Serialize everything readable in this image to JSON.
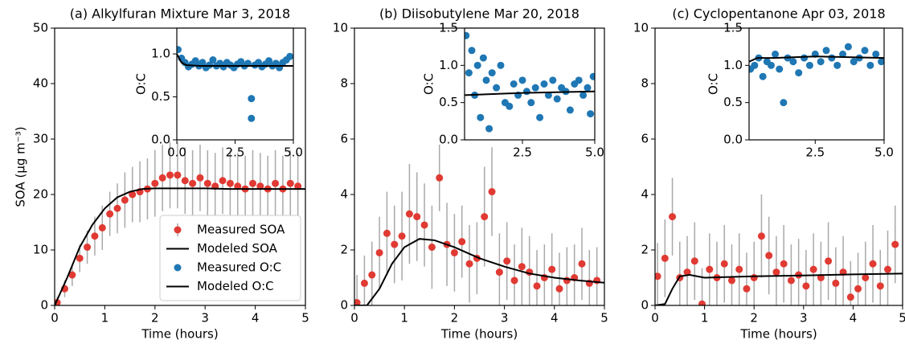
{
  "chart_data": [
    {
      "type": "scatter",
      "title": "(a) Alkylfuran Mixture Mar 3, 2018",
      "xlabel": "Time (hours)",
      "ylabel": "SOA (μg m⁻³)",
      "xlim": [
        0,
        5
      ],
      "xticks": [
        0,
        1,
        2,
        3,
        4,
        5
      ],
      "ylim": [
        0,
        50
      ],
      "yticks": [
        0,
        10,
        20,
        30,
        40,
        50
      ],
      "legend": "lower right",
      "series": [
        {
          "name": "Measured SOA",
          "mode": "markers",
          "color": "#e03a33",
          "error_color": "#a9a9a9",
          "x": [
            0.05,
            0.2,
            0.35,
            0.5,
            0.65,
            0.8,
            0.95,
            1.1,
            1.25,
            1.4,
            1.55,
            1.7,
            1.85,
            2.0,
            2.15,
            2.3,
            2.45,
            2.6,
            2.75,
            2.9,
            3.05,
            3.2,
            3.35,
            3.5,
            3.65,
            3.8,
            3.95,
            4.1,
            4.25,
            4.4,
            4.55,
            4.7,
            4.85
          ],
          "values": [
            0.5,
            3,
            5.5,
            8.5,
            10.5,
            12.5,
            14,
            16.5,
            17.5,
            19,
            20,
            20.5,
            21,
            22,
            23,
            23.5,
            23.5,
            22.5,
            22,
            23,
            22,
            21.5,
            22.5,
            22,
            21.5,
            21,
            22,
            21.5,
            21,
            22,
            21,
            22,
            21.5
          ],
          "errors": [
            1,
            1.5,
            2,
            2.5,
            3,
            3.5,
            4,
            4,
            4.5,
            5,
            5,
            5.5,
            5.5,
            6,
            6,
            6,
            6,
            6,
            6,
            6,
            6,
            6,
            6,
            6,
            6,
            6,
            6,
            6,
            6,
            6,
            6,
            6,
            6
          ]
        },
        {
          "name": "Modeled SOA",
          "mode": "lines",
          "color": "#000000",
          "x": [
            0,
            0.25,
            0.5,
            0.75,
            1.0,
            1.25,
            1.5,
            1.75,
            2,
            2.5,
            3,
            3.5,
            4,
            4.5,
            5
          ],
          "values": [
            0,
            5,
            10.5,
            14.5,
            17.5,
            19.5,
            20.5,
            21,
            21.1,
            21.1,
            21.1,
            21,
            21,
            21,
            21
          ]
        }
      ]
    },
    {
      "type": "scatter",
      "ylabel": "O:C",
      "xlim": [
        0,
        5
      ],
      "xticks": [
        {
          "value": 0,
          "label": "0.0"
        },
        {
          "value": 2.5,
          "label": "2.5"
        },
        {
          "value": 5,
          "label": "5.0"
        }
      ],
      "ylim": [
        0,
        1.3
      ],
      "yticks": [
        {
          "value": 0,
          "label": "0.0"
        },
        {
          "value": 0.5,
          "label": "0.5"
        },
        {
          "value": 1,
          "label": "1.0"
        }
      ],
      "series": [
        {
          "name": "Measured O:C",
          "mode": "markers",
          "color": "#1f77b4",
          "x": [
            0.05,
            0.2,
            0.35,
            0.5,
            0.65,
            0.8,
            0.95,
            1.1,
            1.25,
            1.4,
            1.55,
            1.7,
            1.85,
            2.0,
            2.15,
            2.3,
            2.45,
            2.6,
            2.75,
            2.9,
            3.05,
            3.2,
            3.2,
            3.35,
            3.5,
            3.65,
            3.8,
            3.95,
            4.1,
            4.25,
            4.4,
            4.55,
            4.7,
            4.85
          ],
          "values": [
            1.05,
            0.95,
            0.9,
            0.85,
            0.88,
            0.92,
            0.86,
            0.9,
            0.84,
            0.87,
            0.93,
            0.86,
            0.89,
            0.85,
            0.9,
            0.87,
            0.84,
            0.88,
            0.91,
            0.86,
            0.89,
            0.48,
            0.25,
            0.87,
            0.9,
            0.85,
            0.88,
            0.92,
            0.86,
            0.89,
            0.84,
            0.9,
            0.93,
            0.97
          ]
        },
        {
          "name": "Modeled O:C",
          "mode": "lines",
          "color": "#000000",
          "x": [
            0,
            0.1,
            0.2,
            0.4,
            1,
            5
          ],
          "values": [
            1.0,
            0.95,
            0.9,
            0.87,
            0.86,
            0.86
          ]
        }
      ]
    },
    {
      "type": "scatter",
      "title": "(b) Diisobutylene Mar 20, 2018",
      "xlabel": "Time (hours)",
      "xlim": [
        0,
        5
      ],
      "xticks": [
        0,
        1,
        2,
        3,
        4,
        5
      ],
      "ylim": [
        0,
        10
      ],
      "yticks": [
        0,
        2,
        4,
        6,
        8,
        10
      ],
      "series": [
        {
          "mode": "markers",
          "color": "#e03a33",
          "error_color": "#a9a9a9",
          "x": [
            0.05,
            0.2,
            0.35,
            0.5,
            0.65,
            0.8,
            0.95,
            1.1,
            1.25,
            1.4,
            1.55,
            1.7,
            1.85,
            2.0,
            2.15,
            2.3,
            2.45,
            2.6,
            2.75,
            2.9,
            3.05,
            3.2,
            3.35,
            3.5,
            3.65,
            3.8,
            3.95,
            4.1,
            4.25,
            4.4,
            4.55,
            4.7,
            4.85
          ],
          "values": [
            0.1,
            0.8,
            1.1,
            1.9,
            2.6,
            2.2,
            2.5,
            3.3,
            3.2,
            2.9,
            2.1,
            4.6,
            2.2,
            1.9,
            2.3,
            1.5,
            1.7,
            3.2,
            4.1,
            1.2,
            1.6,
            0.9,
            1.4,
            1.2,
            0.7,
            1.0,
            1.3,
            0.6,
            0.9,
            1.0,
            1.5,
            0.8,
            0.9
          ],
          "errors": [
            1.0,
            1.0,
            1.2,
            1.3,
            1.5,
            1.4,
            1.6,
            1.8,
            1.6,
            1.5,
            1.5,
            1.2,
            1.5,
            1.4,
            1.3,
            1.4,
            1.3,
            1.8,
            1.6,
            1.4,
            1.4,
            1.3,
            1.4,
            1.3,
            1.3,
            1.2,
            1.3,
            1.3,
            1.2,
            1.2,
            1.3,
            1.2,
            1.2
          ]
        },
        {
          "mode": "lines",
          "color": "#000000",
          "x": [
            0,
            0.25,
            0.5,
            0.75,
            1.0,
            1.3,
            1.6,
            2,
            2.5,
            3,
            3.5,
            4,
            4.5,
            5
          ],
          "values": [
            0,
            0,
            0.6,
            1.5,
            2.1,
            2.4,
            2.35,
            2.1,
            1.7,
            1.4,
            1.15,
            1.0,
            0.9,
            0.82
          ]
        }
      ]
    },
    {
      "type": "scatter",
      "ylabel": "O:C",
      "xlim": [
        0.5,
        5
      ],
      "xticks": [
        {
          "value": 2.5,
          "label": "2.5"
        },
        {
          "value": 5,
          "label": "5.0"
        }
      ],
      "ylim": [
        0,
        1.5
      ],
      "yticks": [
        {
          "value": 0,
          "label": "0.0"
        },
        {
          "value": 0.5,
          "label": "0.5"
        },
        {
          "value": 1,
          "label": "1.0"
        },
        {
          "value": 1.5,
          "label": "1.5"
        }
      ],
      "series": [
        {
          "mode": "markers",
          "color": "#1f77b4",
          "x": [
            0.55,
            0.65,
            0.75,
            0.85,
            0.95,
            1.05,
            1.15,
            1.25,
            1.35,
            1.45,
            1.6,
            1.75,
            1.9,
            2.05,
            2.2,
            2.35,
            2.5,
            2.65,
            2.8,
            2.95,
            3.1,
            3.25,
            3.4,
            3.55,
            3.7,
            3.85,
            4.0,
            4.15,
            4.3,
            4.45,
            4.6,
            4.75,
            4.85,
            4.95
          ],
          "values": [
            1.4,
            0.9,
            1.2,
            0.6,
            1.0,
            0.3,
            1.1,
            0.8,
            0.15,
            0.9,
            0.7,
            1.0,
            0.5,
            0.45,
            0.75,
            0.6,
            0.8,
            0.65,
            0.5,
            0.7,
            0.3,
            0.75,
            0.6,
            0.8,
            0.55,
            0.7,
            0.65,
            0.4,
            0.75,
            0.8,
            0.6,
            0.7,
            0.35,
            0.85
          ]
        },
        {
          "mode": "lines",
          "color": "#000000",
          "x": [
            0.5,
            2.5,
            5
          ],
          "values": [
            0.6,
            0.63,
            0.65
          ]
        }
      ]
    },
    {
      "type": "scatter",
      "title": "(c) Cyclopentanone Apr 03, 2018",
      "xlabel": "Time (hours)",
      "xlim": [
        0,
        5
      ],
      "xticks": [
        0,
        1,
        2,
        3,
        4,
        5
      ],
      "ylim": [
        0,
        10
      ],
      "yticks": [
        0,
        2,
        4,
        6,
        8,
        10
      ],
      "series": [
        {
          "mode": "markers",
          "color": "#e03a33",
          "error_color": "#a9a9a9",
          "x": [
            0.05,
            0.2,
            0.35,
            0.5,
            0.65,
            0.8,
            0.95,
            1.1,
            1.25,
            1.4,
            1.55,
            1.7,
            1.85,
            2.0,
            2.15,
            2.3,
            2.45,
            2.6,
            2.75,
            2.9,
            3.05,
            3.2,
            3.35,
            3.5,
            3.65,
            3.8,
            3.95,
            4.1,
            4.25,
            4.4,
            4.55,
            4.7,
            4.85
          ],
          "values": [
            1.05,
            1.7,
            3.2,
            1.0,
            1.2,
            1.6,
            0.05,
            1.3,
            1.0,
            1.5,
            0.9,
            1.3,
            0.6,
            1.0,
            2.5,
            1.8,
            1.2,
            1.5,
            0.9,
            1.1,
            0.7,
            1.3,
            1.0,
            1.6,
            0.8,
            1.2,
            0.3,
            0.6,
            1.0,
            1.5,
            0.7,
            1.3,
            2.2
          ],
          "errors": [
            1.2,
            1.4,
            1.4,
            1.3,
            1.3,
            1.4,
            1.3,
            1.3,
            1.3,
            1.4,
            1.3,
            1.3,
            1.3,
            1.3,
            1.5,
            1.4,
            1.3,
            1.4,
            1.3,
            1.3,
            1.3,
            1.3,
            1.3,
            1.4,
            1.3,
            1.3,
            1.3,
            1.3,
            1.3,
            1.4,
            1.3,
            1.4,
            1.4
          ]
        },
        {
          "mode": "lines",
          "color": "#000000",
          "x": [
            0,
            0.2,
            0.35,
            0.5,
            0.7,
            1,
            2,
            3,
            4,
            5
          ],
          "values": [
            0,
            0.05,
            0.6,
            1.05,
            1.1,
            1.0,
            1.05,
            1.08,
            1.12,
            1.15
          ]
        }
      ]
    },
    {
      "type": "scatter",
      "ylabel": "O:C",
      "xlim": [
        0.1,
        5
      ],
      "xticks": [
        {
          "value": 2.5,
          "label": "2.5"
        },
        {
          "value": 5,
          "label": "5.0"
        }
      ],
      "ylim": [
        0,
        1.5
      ],
      "yticks": [
        {
          "value": 0,
          "label": "0.0"
        },
        {
          "value": 0.5,
          "label": "0.5"
        },
        {
          "value": 1,
          "label": "1.0"
        },
        {
          "value": 1.5,
          "label": "1.5"
        }
      ],
      "series": [
        {
          "mode": "markers",
          "color": "#1f77b4",
          "x": [
            0.15,
            0.3,
            0.45,
            0.6,
            0.75,
            0.9,
            1.05,
            1.2,
            1.35,
            1.5,
            1.7,
            1.9,
            2.1,
            2.3,
            2.5,
            2.7,
            2.9,
            3.1,
            3.3,
            3.5,
            3.7,
            3.9,
            4.1,
            4.3,
            4.5,
            4.7,
            4.9
          ],
          "values": [
            0.95,
            1.0,
            1.1,
            0.85,
            1.05,
            1.0,
            1.15,
            0.95,
            0.5,
            1.1,
            1.05,
            0.9,
            1.1,
            1.0,
            1.15,
            1.05,
            1.2,
            1.1,
            1.0,
            1.15,
            1.25,
            1.05,
            1.1,
            1.2,
            1.0,
            1.15,
            1.05
          ]
        },
        {
          "mode": "lines",
          "color": "#000000",
          "x": [
            0.1,
            0.4,
            1,
            2.5,
            5
          ],
          "values": [
            1.05,
            1.1,
            1.1,
            1.12,
            1.1
          ]
        }
      ]
    }
  ]
}
